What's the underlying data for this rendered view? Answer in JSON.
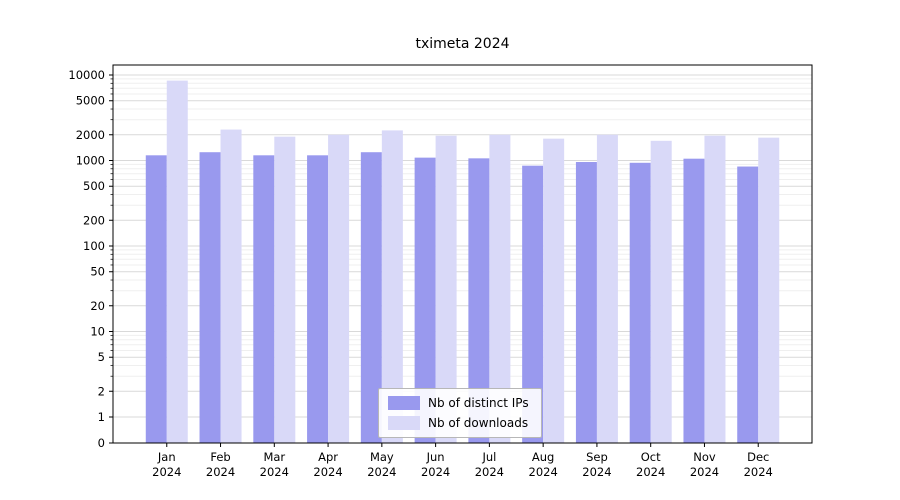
{
  "chart_data": {
    "type": "bar",
    "title": "tximeta 2024",
    "categories": [
      "Jan",
      "Feb",
      "Mar",
      "Apr",
      "May",
      "Jun",
      "Jul",
      "Aug",
      "Sep",
      "Oct",
      "Nov",
      "Dec"
    ],
    "category_year": "2024",
    "series": [
      {
        "name": "Nb of distinct IPs",
        "key": "distinct-ips",
        "color": "#9999ee",
        "values": [
          1150,
          1250,
          1150,
          1150,
          1250,
          1080,
          1060,
          870,
          960,
          940,
          1050,
          850
        ]
      },
      {
        "name": "Nb of downloads",
        "key": "downloads",
        "color": "#d9d9f8",
        "values": [
          8600,
          2300,
          1900,
          2000,
          2250,
          1950,
          2000,
          1800,
          2000,
          1700,
          1950,
          1850
        ]
      }
    ],
    "yscale": "symlog",
    "ylim": [
      0,
      13000
    ],
    "ytick_values": [
      0,
      1,
      2,
      5,
      10,
      20,
      50,
      100,
      200,
      500,
      1000,
      2000,
      5000,
      10000
    ],
    "ytick_labels": [
      "0",
      "1",
      "2",
      "5",
      "10",
      "20",
      "50",
      "100",
      "200",
      "500",
      "1000",
      "2000",
      "5000",
      "10000"
    ],
    "grid": true,
    "legend_position": "lower center"
  },
  "colors": {
    "grid_major": "#d9d9d9",
    "grid_minor": "#efefef",
    "axis": "#000000",
    "tick_text": "#000000"
  }
}
